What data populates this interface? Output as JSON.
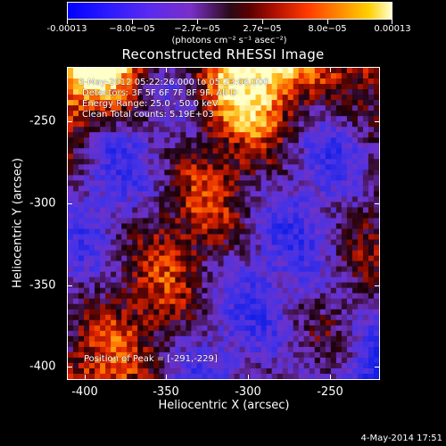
{
  "colorbar": {
    "ticks": [
      "-0.00013",
      "−8.0e−05",
      "−2.7e−05",
      "2.7e−05",
      "8.0e−05",
      "0.00013"
    ],
    "units": "(photons cm⁻² s⁻¹ asec⁻²)"
  },
  "title": "Reconstructed RHESSI Image",
  "info": {
    "line1": "3-May-2012 05:22:26.000 to 05:23:06.000",
    "line2": "Detectors: 3F 5F 6F 7F 8F 9F, All D",
    "line3": "Energy Range: 25.0 - 50.0 keV",
    "line4": "Clean     Total counts: 5.19E+03",
    "peak": "Position of Peak = [-291,-229]"
  },
  "axes": {
    "xlabel": "Heliocentric X (arcsec)",
    "ylabel": "Heliocentric Y (arcsec)",
    "xticks": [
      "-400",
      "-350",
      "-300",
      "-250"
    ],
    "yticks": [
      "-250",
      "-300",
      "-350",
      "-400"
    ]
  },
  "timestamp": "4-May-2014 17:51"
}
